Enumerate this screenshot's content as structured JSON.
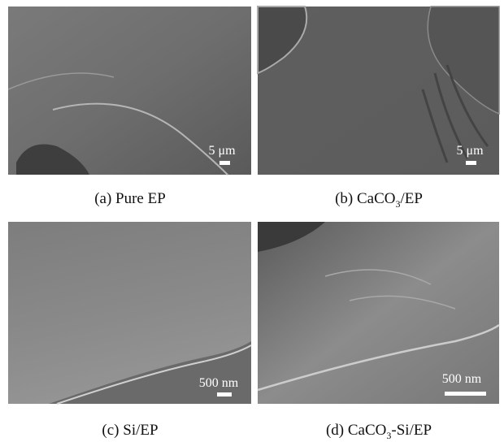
{
  "panels": [
    {
      "caption": [
        "(a) Pure EP"
      ],
      "scale_label": "5 μm"
    },
    {
      "caption": [
        "(b) CaCO",
        "3",
        "/EP"
      ],
      "scale_label": "5 μm"
    },
    {
      "caption": [
        "(c) Si/EP"
      ],
      "scale_label": "500 nm"
    },
    {
      "caption": [
        "(d) CaCO",
        "3",
        "-Si/EP"
      ],
      "scale_label": "500 nm"
    }
  ]
}
